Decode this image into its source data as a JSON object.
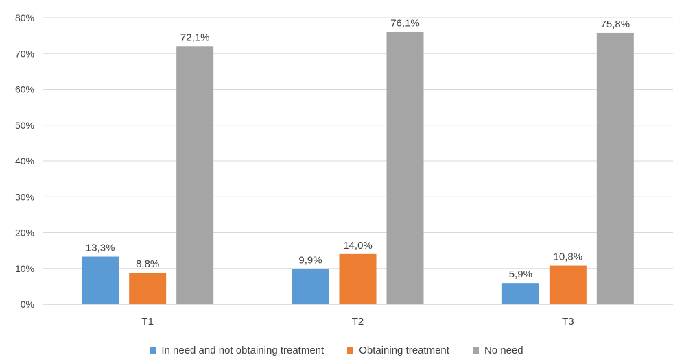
{
  "chart_data": {
    "type": "bar",
    "title": "",
    "xlabel": "",
    "ylabel": "",
    "categories": [
      "T1",
      "T2",
      "T3"
    ],
    "ylim": [
      0,
      80
    ],
    "yticks": [
      0,
      10,
      20,
      30,
      40,
      50,
      60,
      70,
      80
    ],
    "ytick_labels": [
      "0%",
      "10%",
      "20%",
      "30%",
      "40%",
      "50%",
      "60%",
      "70%",
      "80%"
    ],
    "grid": "horizontal",
    "legend_position": "bottom",
    "series": [
      {
        "name": "In need and not obtaining treatment",
        "color": "#5b9bd5",
        "values": [
          13.3,
          9.9,
          5.9
        ],
        "labels": [
          "13,3%",
          "9,9%",
          "5,9%"
        ]
      },
      {
        "name": "Obtaining treatment",
        "color": "#ed7d31",
        "values": [
          8.8,
          14.0,
          10.8
        ],
        "labels": [
          "8,8%",
          "14,0%",
          "10,8%"
        ]
      },
      {
        "name": "No need",
        "color": "#a5a5a5",
        "values": [
          72.1,
          76.1,
          75.8
        ],
        "labels": [
          "72,1%",
          "76,1%",
          "75,8%"
        ]
      }
    ]
  }
}
